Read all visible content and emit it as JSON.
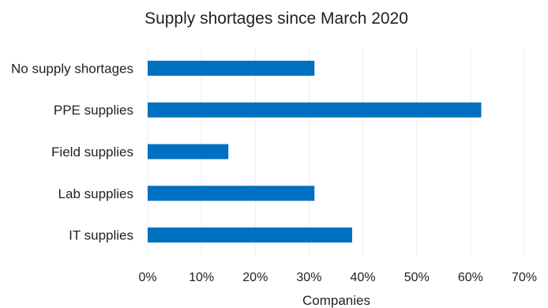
{
  "chart_data": {
    "type": "bar",
    "orientation": "horizontal",
    "title": "Supply shortages since March 2020",
    "xlabel": "Companies",
    "ylabel": "",
    "categories": [
      "No supply shortages",
      "PPE supplies",
      "Field supplies",
      "Lab supplies",
      "IT supplies"
    ],
    "values": [
      0.31,
      0.62,
      0.15,
      0.31,
      0.38
    ],
    "xlim": [
      0,
      0.7
    ],
    "xticks": [
      0,
      0.1,
      0.2,
      0.3,
      0.4,
      0.5,
      0.6,
      0.7
    ],
    "xtick_labels": [
      "0%",
      "10%",
      "20%",
      "30%",
      "40%",
      "50%",
      "60%",
      "70%"
    ],
    "bar_color": "#0070c0",
    "grid": "vertical",
    "legend": "none"
  }
}
